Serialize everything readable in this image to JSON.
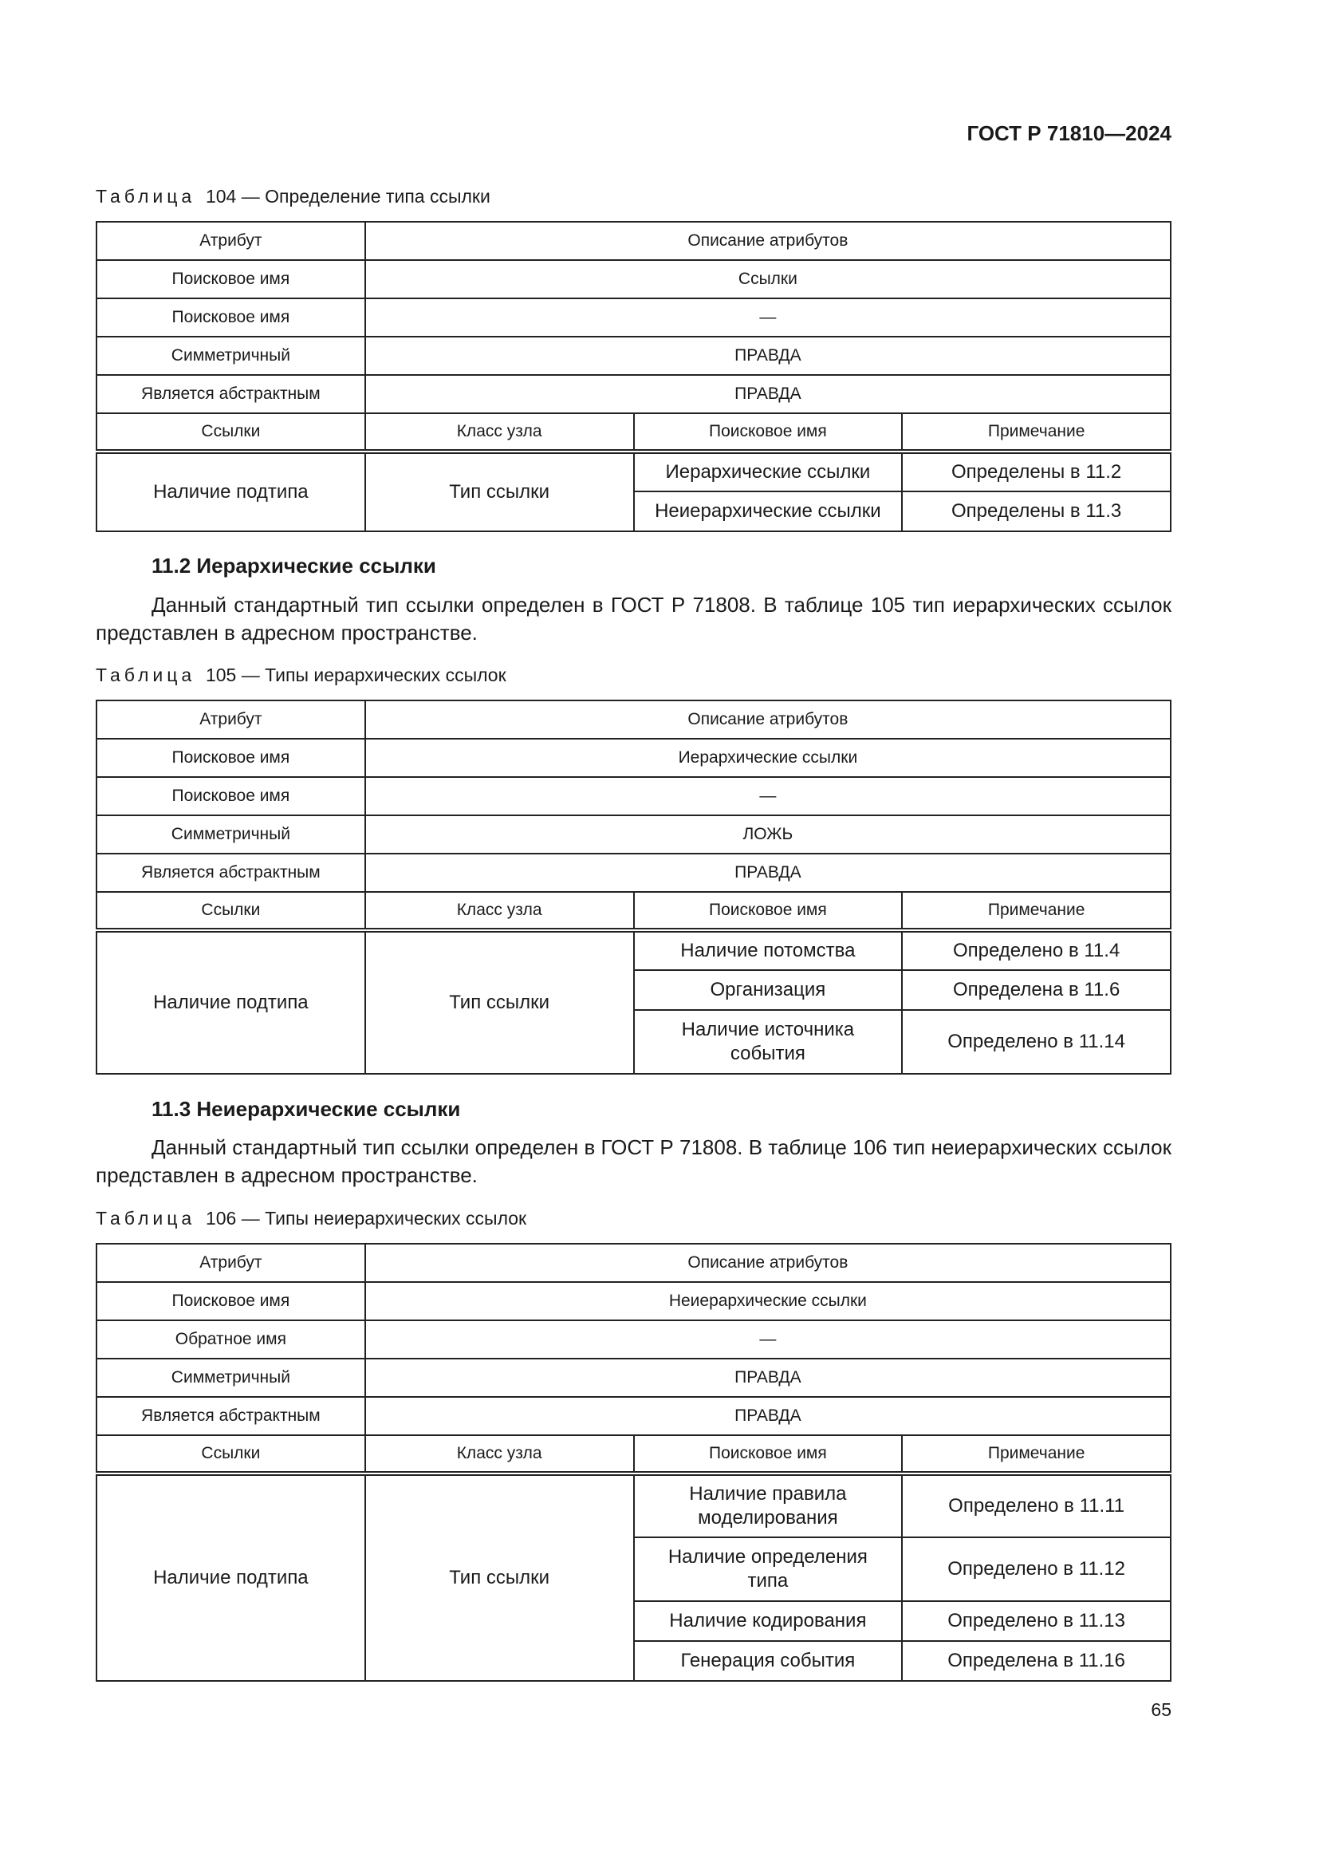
{
  "header": {
    "doc_id": "ГОСТ Р 71810—2024"
  },
  "sections": {
    "s112": {
      "title": "11.2 Иерархические ссылки",
      "text": "Данный стандартный тип ссылки определен в ГОСТ Р 71808. В таблице 105 тип иерархических ссылок представлен в адресном пространстве."
    },
    "s113": {
      "title": "11.3 Неиерархические ссылки",
      "text": "Данный стандартный тип ссылки определен в ГОСТ Р 71808. В таблице 106 тип неиерархических ссылок представлен в адресном пространстве."
    }
  },
  "tables": {
    "t104": {
      "caption_word": "Таблица",
      "caption": "104 — Определение типа ссылки",
      "attrs": [
        [
          "Атрибут",
          "Описание атрибутов"
        ],
        [
          "Поисковое имя",
          "Ссылки"
        ],
        [
          "Поисковое имя",
          "—"
        ],
        [
          "Симметричный",
          "ПРАВДА"
        ],
        [
          "Является абстрактным",
          "ПРАВДА"
        ]
      ],
      "refs_header": [
        "Ссылки",
        "Класс узла",
        "Поисковое имя",
        "Примечание"
      ],
      "refs_type": "Наличие подтипа",
      "node_class": "Тип ссылки",
      "rows": [
        [
          "Иерархические ссылки",
          "Определены в 11.2"
        ],
        [
          "Неиерархические ссылки",
          "Определены в 11.3"
        ]
      ]
    },
    "t105": {
      "caption_word": "Таблица",
      "caption": "105 — Типы иерархических ссылок",
      "attrs": [
        [
          "Атрибут",
          "Описание атрибутов"
        ],
        [
          "Поисковое имя",
          "Иерархические ссылки"
        ],
        [
          "Поисковое имя",
          "—"
        ],
        [
          "Симметричный",
          "ЛОЖЬ"
        ],
        [
          "Является абстрактным",
          "ПРАВДА"
        ]
      ],
      "refs_header": [
        "Ссылки",
        "Класс узла",
        "Поисковое имя",
        "Примечание"
      ],
      "refs_type": "Наличие подтипа",
      "node_class": "Тип ссылки",
      "rows": [
        [
          "Наличие потомства",
          "Определено в 11.4"
        ],
        [
          "Организация",
          "Определена в 11.6"
        ],
        [
          "Наличие источника\nсобытия",
          "Определено в 11.14"
        ]
      ]
    },
    "t106": {
      "caption_word": "Таблица",
      "caption": "106 — Типы неиерархических ссылок",
      "attrs": [
        [
          "Атрибут",
          "Описание атрибутов"
        ],
        [
          "Поисковое имя",
          "Неиерархические ссылки"
        ],
        [
          "Обратное имя",
          "—"
        ],
        [
          "Симметричный",
          "ПРАВДА"
        ],
        [
          "Является абстрактным",
          "ПРАВДА"
        ]
      ],
      "refs_header": [
        "Ссылки",
        "Класс узла",
        "Поисковое имя",
        "Примечание"
      ],
      "refs_type": "Наличие подтипа",
      "node_class": "Тип ссылки",
      "rows": [
        [
          "Наличие правила\nмоделирования",
          "Определено в 11.11"
        ],
        [
          "Наличие определения\nтипа",
          "Определено в 11.12"
        ],
        [
          "Наличие кодирования",
          "Определено в 11.13"
        ],
        [
          "Генерация события",
          "Определена в 11.16"
        ]
      ]
    }
  },
  "footer": {
    "page_number": "65"
  }
}
